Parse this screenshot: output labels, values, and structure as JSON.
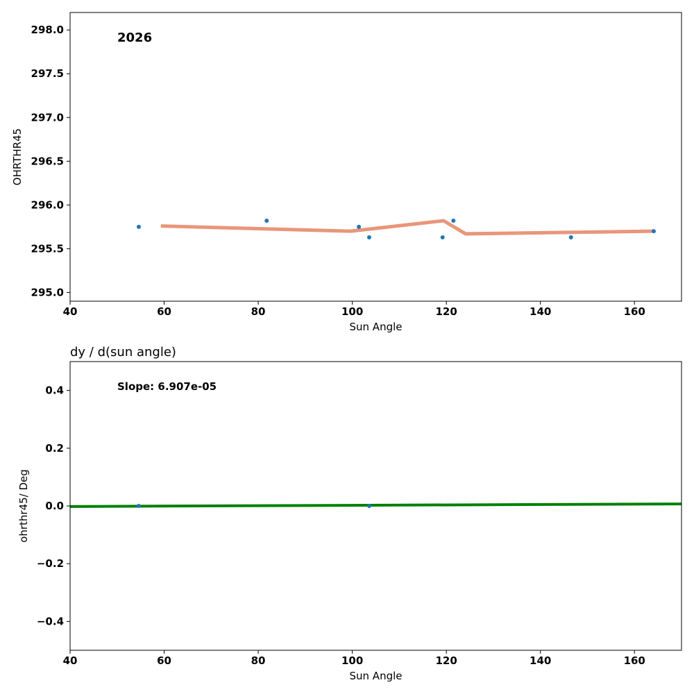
{
  "chart_data": [
    {
      "type": "scatter",
      "title": "",
      "annotation": "2026",
      "xlabel": "Sun Angle",
      "ylabel": "OHRTHR45",
      "xlim": [
        40,
        170
      ],
      "ylim": [
        294.9,
        298.2
      ],
      "xticks": [
        40,
        60,
        80,
        100,
        120,
        140,
        160
      ],
      "yticks": [
        295.0,
        295.5,
        296.0,
        296.5,
        297.0,
        297.5,
        298.0
      ],
      "points": {
        "x": [
          54.6,
          81.8,
          101.4,
          103.6,
          119.2,
          121.5,
          146.5,
          164.1
        ],
        "y": [
          295.75,
          295.82,
          295.75,
          295.63,
          295.63,
          295.82,
          295.63,
          295.7
        ]
      },
      "line": {
        "x": [
          59.3,
          99.6,
          119.4,
          124.1,
          164.1
        ],
        "y": [
          295.76,
          295.7,
          295.82,
          295.67,
          295.7
        ]
      },
      "colors": {
        "points": "#1f77b4",
        "line": "#e9967a"
      }
    },
    {
      "type": "line",
      "title": "dy / d(sun angle)",
      "annotation": "Slope: 6.907e-05",
      "xlabel": "Sun Angle",
      "ylabel": "ohrthr45/ Deg",
      "xlim": [
        40,
        170
      ],
      "ylim": [
        -0.5,
        0.5
      ],
      "xticks": [
        40,
        60,
        80,
        100,
        120,
        140,
        160
      ],
      "yticks": [
        -0.4,
        -0.2,
        0.0,
        0.2,
        0.4
      ],
      "points": {
        "x": [
          54.6,
          103.6
        ],
        "y": [
          0.0,
          0.0
        ]
      },
      "line": {
        "x": [
          40,
          170
        ],
        "y": [
          -0.002,
          0.007
        ]
      },
      "colors": {
        "points": "#1f77b4",
        "line": "#008000"
      }
    }
  ]
}
